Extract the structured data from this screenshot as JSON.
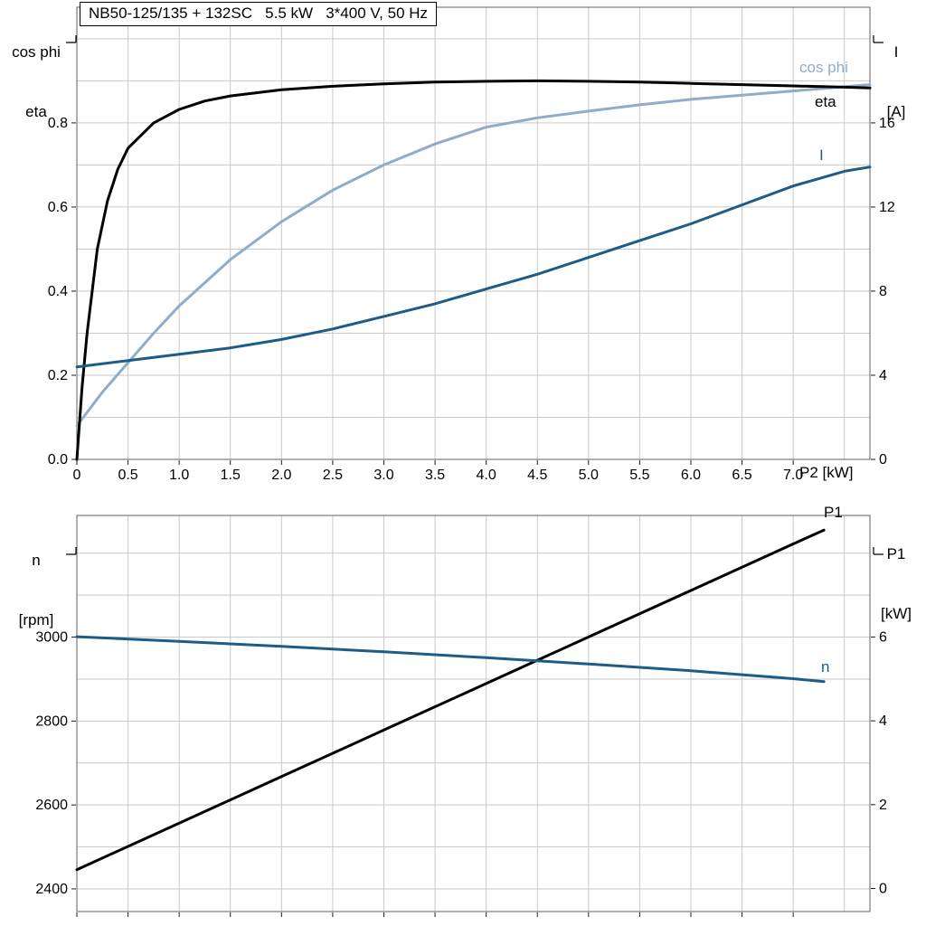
{
  "page": {
    "title_box": "NB50-125/135 + 132SC   5.5 kW   3*400 V, 50 Hz"
  },
  "colors": {
    "grid": "#c9c9c9",
    "plot_border": "#5f5f5f",
    "tick": "#1a1a1a",
    "text": "#000000",
    "cos_phi": "#8fadc8",
    "eta": "#000000",
    "current": "#1e5c88",
    "p1": "#000000",
    "n": "#1e5c88"
  },
  "chart_data": [
    {
      "type": "line",
      "title": "NB50-125/135 + 132SC   5.5 kW   3*400 V, 50 Hz",
      "x_axis": {
        "label": "P2 [kW]",
        "min": 0,
        "max": 7.75,
        "grid_step": 0.5,
        "ticks": [
          0,
          0.5,
          1,
          1.5,
          2,
          2.5,
          3,
          3.5,
          4,
          4.5,
          5,
          5.5,
          6,
          6.5,
          7
        ],
        "tick_labels": [
          "0",
          "0.5",
          "1.0",
          "1.5",
          "2.0",
          "2.5",
          "3.0",
          "3.5",
          "4.0",
          "4.5",
          "5.0",
          "5.5",
          "6.0",
          "6.5",
          "7.0"
        ]
      },
      "y_left": {
        "header": [
          "cos phi",
          "eta"
        ],
        "min": 0,
        "max": 1.075,
        "grid_step": 0.1,
        "ticks": [
          0,
          0.2,
          0.4,
          0.6,
          0.8
        ],
        "tick_labels": [
          "0.0",
          "0.2",
          "0.4",
          "0.6",
          "0.8"
        ]
      },
      "y_right": {
        "header": [
          "I",
          "[A]"
        ],
        "min": 0,
        "max": 21.5,
        "ticks": [
          0,
          4,
          8,
          12,
          16
        ],
        "tick_labels": [
          "0",
          "4",
          "8",
          "12",
          "16"
        ]
      },
      "legend_position": "right-edge",
      "grid": true,
      "series": [
        {
          "name": "cos phi",
          "axis": "left",
          "color": "#8fadc8",
          "points": [
            [
              0,
              0.08
            ],
            [
              0.25,
              0.16
            ],
            [
              0.5,
              0.23
            ],
            [
              0.75,
              0.3
            ],
            [
              1,
              0.365
            ],
            [
              1.5,
              0.475
            ],
            [
              2,
              0.565
            ],
            [
              2.5,
              0.64
            ],
            [
              3,
              0.7
            ],
            [
              3.5,
              0.75
            ],
            [
              4,
              0.79
            ],
            [
              4.5,
              0.812
            ],
            [
              5,
              0.828
            ],
            [
              5.5,
              0.843
            ],
            [
              6,
              0.856
            ],
            [
              6.5,
              0.866
            ],
            [
              7,
              0.876
            ],
            [
              7.5,
              0.886
            ],
            [
              7.75,
              0.891
            ]
          ]
        },
        {
          "name": "eta",
          "axis": "left",
          "color": "#000000",
          "points": [
            [
              0,
              0
            ],
            [
              0.05,
              0.17
            ],
            [
              0.1,
              0.3
            ],
            [
              0.2,
              0.5
            ],
            [
              0.3,
              0.615
            ],
            [
              0.4,
              0.69
            ],
            [
              0.5,
              0.74
            ],
            [
              0.75,
              0.8
            ],
            [
              1,
              0.832
            ],
            [
              1.25,
              0.852
            ],
            [
              1.5,
              0.864
            ],
            [
              2,
              0.879
            ],
            [
              2.5,
              0.887
            ],
            [
              3,
              0.893
            ],
            [
              3.5,
              0.897
            ],
            [
              4,
              0.899
            ],
            [
              4.5,
              0.9
            ],
            [
              5,
              0.899
            ],
            [
              5.5,
              0.897
            ],
            [
              6,
              0.894
            ],
            [
              6.5,
              0.891
            ],
            [
              7,
              0.888
            ],
            [
              7.5,
              0.885
            ],
            [
              7.75,
              0.883
            ]
          ]
        },
        {
          "name": "I",
          "axis": "right",
          "color": "#1e5c88",
          "points": [
            [
              0,
              4.4
            ],
            [
              0.5,
              4.7
            ],
            [
              1,
              5.0
            ],
            [
              1.5,
              5.3
            ],
            [
              2,
              5.7
            ],
            [
              2.5,
              6.2
            ],
            [
              3,
              6.8
            ],
            [
              3.5,
              7.4
            ],
            [
              4,
              8.1
            ],
            [
              4.5,
              8.8
            ],
            [
              5,
              9.6
            ],
            [
              5.5,
              10.4
            ],
            [
              6,
              11.2
            ],
            [
              6.5,
              12.1
            ],
            [
              7,
              13.0
            ],
            [
              7.5,
              13.7
            ],
            [
              7.75,
              13.9
            ]
          ]
        }
      ]
    },
    {
      "type": "line",
      "x_axis": {
        "label": "",
        "min": 0,
        "max": 7.75,
        "grid_step": 0.5,
        "ticks": [
          0,
          0.5,
          1,
          1.5,
          2,
          2.5,
          3,
          3.5,
          4,
          4.5,
          5,
          5.5,
          6,
          6.5,
          7
        ],
        "tick_labels": []
      },
      "y_left": {
        "header": [
          "n",
          "[rpm]"
        ],
        "min": 2346,
        "max": 3290,
        "grid_step": 100,
        "ticks": [
          2400,
          2600,
          2800,
          3000
        ],
        "tick_labels": [
          "2400",
          "2600",
          "2800",
          "3000"
        ]
      },
      "y_right": {
        "header": [
          "P1",
          "[kW]"
        ],
        "min": -0.55,
        "max": 8.9,
        "ticks": [
          0,
          2,
          4,
          6
        ],
        "tick_labels": [
          "0",
          "2",
          "4",
          "6"
        ]
      },
      "legend_position": "right-edge",
      "grid": true,
      "series": [
        {
          "name": "P1",
          "axis": "right",
          "color": "#000000",
          "points": [
            [
              0,
              0.45
            ],
            [
              1,
              1.56
            ],
            [
              2,
              2.67
            ],
            [
              3,
              3.78
            ],
            [
              4,
              4.89
            ],
            [
              5,
              6.0
            ],
            [
              6,
              7.11
            ],
            [
              7,
              8.22
            ],
            [
              7.3,
              8.55
            ]
          ]
        },
        {
          "name": "n",
          "axis": "left",
          "color": "#1e5c88",
          "points": [
            [
              0,
              3001
            ],
            [
              1,
              2990
            ],
            [
              2,
              2978
            ],
            [
              3,
              2965
            ],
            [
              4,
              2951
            ],
            [
              5,
              2936
            ],
            [
              6,
              2920
            ],
            [
              7,
              2901
            ],
            [
              7.3,
              2894
            ]
          ]
        }
      ]
    }
  ]
}
